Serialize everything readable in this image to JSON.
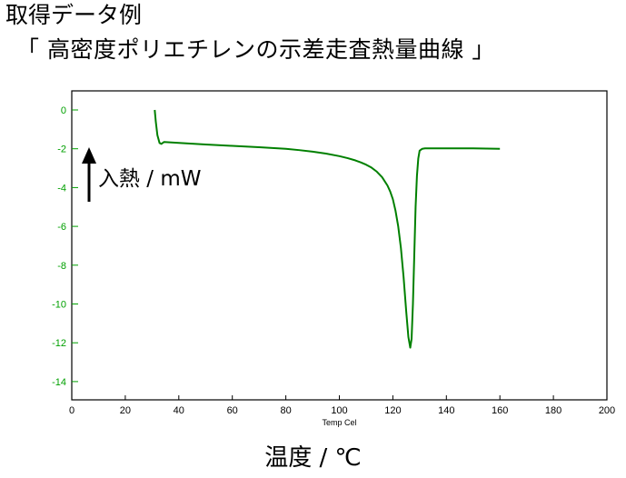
{
  "page": {
    "title_line1": "取得データ例",
    "title_line2": "「 高密度ポリエチレンの示差走査熱量曲線 」",
    "y_caption": "入熱 / mW",
    "x_caption": "温度 / ℃"
  },
  "chart_data": {
    "type": "line",
    "title": "",
    "xlabel": "Temp Cel",
    "ylabel": "入熱 / mW",
    "xlim": [
      0,
      200
    ],
    "ylim": [
      -15,
      1
    ],
    "x_ticks": [
      0,
      20,
      40,
      60,
      80,
      100,
      120,
      140,
      160,
      180,
      200
    ],
    "y_ticks": [
      0,
      -2,
      -4,
      -6,
      -8,
      -10,
      -12,
      -14
    ],
    "grid": false,
    "legend": "none",
    "colors": {
      "axis": "#00a000",
      "curve": "#008000",
      "frame": "#000000"
    },
    "series": [
      {
        "x": [
          31,
          31.4,
          32,
          32.8,
          33.5,
          34.5,
          40,
          50,
          60,
          70,
          80,
          85,
          90,
          95,
          100,
          103,
          106,
          108,
          110,
          112,
          114,
          116,
          118,
          119,
          120,
          121,
          122,
          123,
          124,
          125,
          125.8,
          126.5,
          127,
          127.5,
          128,
          128.5,
          129,
          129.5,
          130,
          131,
          132,
          140,
          150,
          160
        ],
        "y": [
          0,
          -0.6,
          -1.3,
          -1.7,
          -1.75,
          -1.65,
          -1.7,
          -1.78,
          -1.85,
          -1.92,
          -2.0,
          -2.07,
          -2.15,
          -2.25,
          -2.38,
          -2.48,
          -2.6,
          -2.7,
          -2.82,
          -2.97,
          -3.18,
          -3.47,
          -3.9,
          -4.2,
          -4.6,
          -5.2,
          -6.0,
          -7.1,
          -8.6,
          -10.4,
          -11.7,
          -12.25,
          -11.8,
          -10.0,
          -7.5,
          -5.0,
          -3.4,
          -2.5,
          -2.1,
          -2.0,
          -1.98,
          -1.98,
          -1.98,
          -2.0
        ]
      }
    ]
  }
}
